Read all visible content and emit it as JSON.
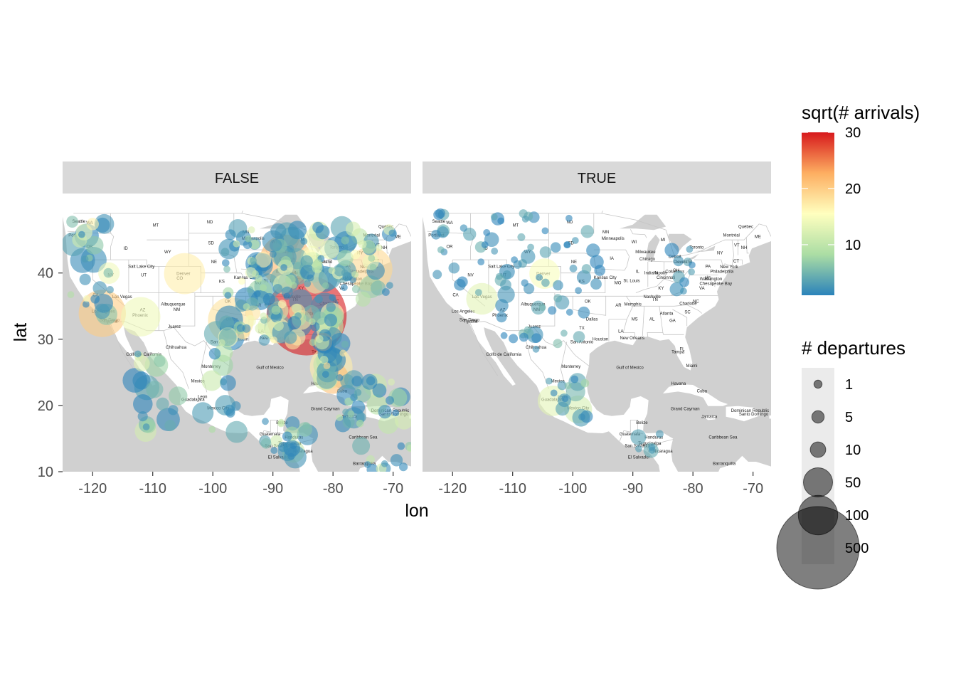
{
  "chart_data": {
    "type": "scatter",
    "map": "North America basemap",
    "facets": [
      "FALSE",
      "TRUE"
    ],
    "xlabel": "lon",
    "ylabel": "lat",
    "xlim": [
      -125,
      -67
    ],
    "ylim": [
      10,
      52
    ],
    "x_ticks": [
      -120,
      -110,
      -100,
      -90,
      -80,
      -70
    ],
    "y_ticks": [
      10,
      20,
      30,
      40
    ],
    "color_legend": {
      "title": "sqrt(# arrivals)",
      "range": [
        1,
        30
      ],
      "ticks": [
        10,
        20,
        30
      ],
      "palette": [
        "#2b83ba",
        "#abdda4",
        "#ffffbf",
        "#fdae61",
        "#d7191c"
      ]
    },
    "size_legend": {
      "title": "# departures",
      "values": [
        1,
        5,
        10,
        50,
        100,
        500
      ]
    },
    "map_labels": [
      {
        "text": "MT",
        "lon": -109.5,
        "lat": 47.0
      },
      {
        "text": "ND",
        "lon": -100.5,
        "lat": 47.5
      },
      {
        "text": "SD",
        "lon": -100.3,
        "lat": 44.3
      },
      {
        "text": "MN",
        "lon": -94.5,
        "lat": 46.0
      },
      {
        "text": "WI",
        "lon": -89.8,
        "lat": 44.5
      },
      {
        "text": "MI",
        "lon": -85.0,
        "lat": 44.8
      },
      {
        "text": "WA",
        "lon": -120.5,
        "lat": 47.4
      },
      {
        "text": "OR",
        "lon": -120.5,
        "lat": 43.8
      },
      {
        "text": "ID",
        "lon": -114.5,
        "lat": 43.5
      },
      {
        "text": "WY",
        "lon": -107.5,
        "lat": 43.0
      },
      {
        "text": "NE",
        "lon": -99.8,
        "lat": 41.5
      },
      {
        "text": "IA",
        "lon": -93.5,
        "lat": 42.0
      },
      {
        "text": "NV",
        "lon": -117.0,
        "lat": 39.5
      },
      {
        "text": "UT",
        "lon": -111.5,
        "lat": 39.5
      },
      {
        "text": "CO",
        "lon": -105.5,
        "lat": 39.0
      },
      {
        "text": "KS",
        "lon": -98.5,
        "lat": 38.5
      },
      {
        "text": "MO",
        "lon": -92.5,
        "lat": 38.3
      },
      {
        "text": "IL",
        "lon": -89.2,
        "lat": 40.0
      },
      {
        "text": "IN",
        "lon": -86.2,
        "lat": 39.8
      },
      {
        "text": "OH",
        "lon": -82.8,
        "lat": 40.2
      },
      {
        "text": "PA",
        "lon": -77.5,
        "lat": 40.8
      },
      {
        "text": "NY",
        "lon": -75.5,
        "lat": 42.8
      },
      {
        "text": "CA",
        "lon": -119.5,
        "lat": 36.5
      },
      {
        "text": "AZ",
        "lon": -111.7,
        "lat": 34.2
      },
      {
        "text": "NM",
        "lon": -106.0,
        "lat": 34.3
      },
      {
        "text": "OK",
        "lon": -97.5,
        "lat": 35.5
      },
      {
        "text": "AR",
        "lon": -92.4,
        "lat": 34.9
      },
      {
        "text": "TN",
        "lon": -86.3,
        "lat": 35.8
      },
      {
        "text": "KY",
        "lon": -85.3,
        "lat": 37.5
      },
      {
        "text": "VA",
        "lon": -78.5,
        "lat": 37.5
      },
      {
        "text": "NC",
        "lon": -79.5,
        "lat": 35.5
      },
      {
        "text": "SC",
        "lon": -80.9,
        "lat": 33.9
      },
      {
        "text": "GA",
        "lon": -83.4,
        "lat": 32.6
      },
      {
        "text": "AL",
        "lon": -86.8,
        "lat": 32.8
      },
      {
        "text": "MS",
        "lon": -89.7,
        "lat": 32.8
      },
      {
        "text": "LA",
        "lon": -92.0,
        "lat": 31.0
      },
      {
        "text": "TX",
        "lon": -98.5,
        "lat": 31.5
      },
      {
        "text": "FL",
        "lon": -81.8,
        "lat": 28.3
      },
      {
        "text": "MD",
        "lon": -77.5,
        "lat": 39.0
      },
      {
        "text": "ME",
        "lon": -69.2,
        "lat": 45.3
      },
      {
        "text": "VT",
        "lon": -72.7,
        "lat": 44.0
      },
      {
        "text": "NH",
        "lon": -71.5,
        "lat": 43.6
      },
      {
        "text": "CT",
        "lon": -72.8,
        "lat": 41.6
      },
      {
        "text": "Seattle",
        "lon": -122.3,
        "lat": 47.6
      },
      {
        "text": "Portland",
        "lon": -122.7,
        "lat": 45.5
      },
      {
        "text": "Salt Lake City",
        "lon": -111.9,
        "lat": 40.8
      },
      {
        "text": "Denver",
        "lon": -104.9,
        "lat": 39.7
      },
      {
        "text": "Las Vegas",
        "lon": -115.1,
        "lat": 36.2
      },
      {
        "text": "Albuquerque",
        "lon": -106.6,
        "lat": 35.1
      },
      {
        "text": "Los Angeles",
        "lon": -118.2,
        "lat": 34.0
      },
      {
        "text": "San Diego",
        "lon": -117.2,
        "lat": 32.7
      },
      {
        "text": "Tijuana",
        "lon": -117.0,
        "lat": 32.5
      },
      {
        "text": "Phoenix",
        "lon": -112.1,
        "lat": 33.4
      },
      {
        "text": "Juarez",
        "lon": -106.4,
        "lat": 31.7
      },
      {
        "text": "Chihuahua",
        "lon": -106.1,
        "lat": 28.6
      },
      {
        "text": "Dallas",
        "lon": -96.8,
        "lat": 32.8
      },
      {
        "text": "San Antonio",
        "lon": -98.5,
        "lat": 29.4
      },
      {
        "text": "Houston",
        "lon": -95.4,
        "lat": 29.8
      },
      {
        "text": "Monterrey",
        "lon": -100.3,
        "lat": 25.7
      },
      {
        "text": "Minneapolis",
        "lon": -93.3,
        "lat": 45.0
      },
      {
        "text": "Milwaukee",
        "lon": -87.9,
        "lat": 43.0
      },
      {
        "text": "Chicago",
        "lon": -87.6,
        "lat": 41.9
      },
      {
        "text": "Kansas City",
        "lon": -94.6,
        "lat": 39.1
      },
      {
        "text": "St. Louis",
        "lon": -90.2,
        "lat": 38.6
      },
      {
        "text": "Indianapolis",
        "lon": -86.2,
        "lat": 39.8
      },
      {
        "text": "Detroit",
        "lon": -83.0,
        "lat": 42.3
      },
      {
        "text": "Cleveland",
        "lon": -81.7,
        "lat": 41.5
      },
      {
        "text": "Columbus",
        "lon": -83.0,
        "lat": 40.0
      },
      {
        "text": "Cincinnati",
        "lon": -84.5,
        "lat": 39.1
      },
      {
        "text": "Toronto",
        "lon": -79.4,
        "lat": 43.7
      },
      {
        "text": "Montréal",
        "lon": -73.6,
        "lat": 45.5
      },
      {
        "text": "Québec",
        "lon": -71.2,
        "lat": 46.8
      },
      {
        "text": "New York",
        "lon": -74.0,
        "lat": 40.7
      },
      {
        "text": "Philadelphia",
        "lon": -75.2,
        "lat": 40.0
      },
      {
        "text": "Washington",
        "lon": -77.0,
        "lat": 38.9
      },
      {
        "text": "Nashville",
        "lon": -86.8,
        "lat": 36.2
      },
      {
        "text": "Memphis",
        "lon": -90.0,
        "lat": 35.1
      },
      {
        "text": "Charlotte",
        "lon": -80.8,
        "lat": 35.2
      },
      {
        "text": "Atlanta",
        "lon": -84.4,
        "lat": 33.7
      },
      {
        "text": "New Orleans",
        "lon": -90.1,
        "lat": 30.0
      },
      {
        "text": "Tampa",
        "lon": -82.5,
        "lat": 27.9
      },
      {
        "text": "Miami",
        "lon": -80.2,
        "lat": 25.8
      },
      {
        "text": "Havana",
        "lon": -82.4,
        "lat": 23.1
      },
      {
        "text": "Cuba",
        "lon": -78.5,
        "lat": 22.0
      },
      {
        "text": "Golfo de California",
        "lon": -111.5,
        "lat": 27.5
      },
      {
        "text": "Gulf of Mexico",
        "lon": -90.5,
        "lat": 25.5
      },
      {
        "text": "Mexico",
        "lon": -102.5,
        "lat": 23.5
      },
      {
        "text": "Leon",
        "lon": -101.7,
        "lat": 21.1
      },
      {
        "text": "Guadalajara",
        "lon": -103.3,
        "lat": 20.7
      },
      {
        "text": "Mexico City",
        "lon": -99.1,
        "lat": 19.4
      },
      {
        "text": "Belize",
        "lon": -88.5,
        "lat": 17.2
      },
      {
        "text": "Guatemala",
        "lon": -90.5,
        "lat": 15.5
      },
      {
        "text": "Honduras",
        "lon": -86.5,
        "lat": 15.0
      },
      {
        "text": "Tegucigalpa",
        "lon": -87.2,
        "lat": 14.1
      },
      {
        "text": "San Salvador",
        "lon": -89.2,
        "lat": 13.7
      },
      {
        "text": "El Salvador",
        "lon": -89.0,
        "lat": 12.0
      },
      {
        "text": "Nicaragua",
        "lon": -85.0,
        "lat": 12.9
      },
      {
        "text": "Jamaica",
        "lon": -77.3,
        "lat": 18.1
      },
      {
        "text": "Dominican Republic",
        "lon": -70.5,
        "lat": 19.0
      },
      {
        "text": "Santo Domingo",
        "lon": -69.9,
        "lat": 18.5
      },
      {
        "text": "Grand Cayman",
        "lon": -81.3,
        "lat": 19.3
      },
      {
        "text": "Caribbean Sea",
        "lon": -75.0,
        "lat": 15.0
      },
      {
        "text": "Barranquilla",
        "lon": -74.8,
        "lat": 11.0
      },
      {
        "text": "Chesapeake Bay",
        "lon": -76.2,
        "lat": 38.2
      }
    ]
  }
}
